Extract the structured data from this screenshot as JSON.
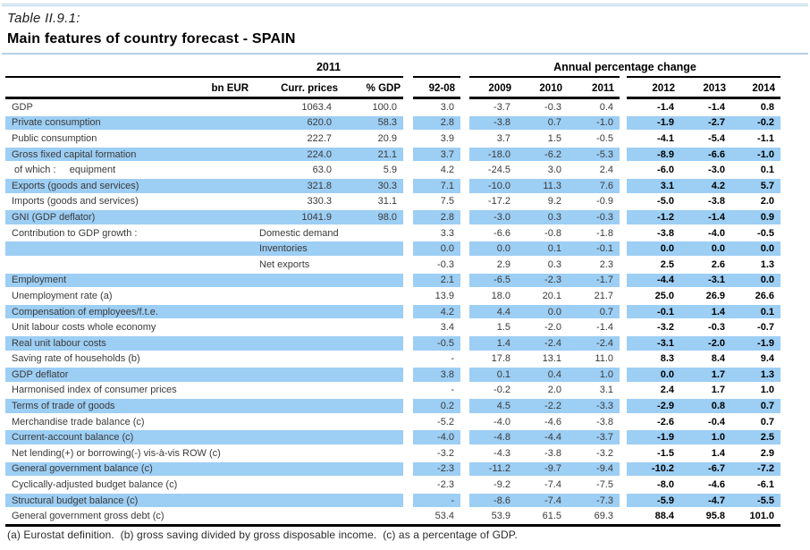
{
  "document": {
    "table_number": "Table II.9.1:",
    "title": "Main features of country forecast - SPAIN",
    "footnote": "(a) Eurostat definition.  (b) gross saving divided by gross disposable income.  (c) as a percentage of GDP."
  },
  "table": {
    "group_headers": {
      "levels": "2011",
      "changes": "Annual percentage change"
    },
    "column_headers": {
      "bn_eur": "bn EUR",
      "curr_prices": "Curr. prices",
      "pct_gdp": "% GDP",
      "period": "92-08",
      "years": [
        "2009",
        "2010",
        "2011",
        "2012",
        "2013",
        "2014"
      ]
    },
    "rows": [
      {
        "label": "GDP",
        "sub": "",
        "curr": "1063.4",
        "pct": "100.0",
        "values": [
          "3.0",
          "-3.7",
          "-0.3",
          "0.4",
          "-1.4",
          "-1.4",
          "0.8"
        ],
        "highlight": false
      },
      {
        "label": "Private consumption",
        "sub": "",
        "curr": "620.0",
        "pct": "58.3",
        "values": [
          "2.8",
          "-3.8",
          "0.7",
          "-1.0",
          "-1.9",
          "-2.7",
          "-0.2"
        ],
        "highlight": true
      },
      {
        "label": "Public consumption",
        "sub": "",
        "curr": "222.7",
        "pct": "20.9",
        "values": [
          "3.9",
          "3.7",
          "1.5",
          "-0.5",
          "-4.1",
          "-5.4",
          "-1.1"
        ],
        "highlight": false
      },
      {
        "label": "Gross fixed capital formation",
        "sub": "",
        "curr": "224.0",
        "pct": "21.1",
        "values": [
          "3.7",
          "-18.0",
          "-6.2",
          "-5.3",
          "-8.9",
          "-6.6",
          "-1.0"
        ],
        "highlight": true
      },
      {
        "label": " of which :     equipment",
        "sub": "",
        "curr": "63.0",
        "pct": "5.9",
        "values": [
          "4.2",
          "-24.5",
          "3.0",
          "2.4",
          "-6.0",
          "-3.0",
          "0.1"
        ],
        "highlight": false
      },
      {
        "label": "Exports (goods and services)",
        "sub": "",
        "curr": "321.8",
        "pct": "30.3",
        "values": [
          "7.1",
          "-10.0",
          "11.3",
          "7.6",
          "3.1",
          "4.2",
          "5.7"
        ],
        "highlight": true
      },
      {
        "label": "Imports (goods and services)",
        "sub": "",
        "curr": "330.3",
        "pct": "31.1",
        "values": [
          "7.5",
          "-17.2",
          "9.2",
          "-0.9",
          "-5.0",
          "-3.8",
          "2.0"
        ],
        "highlight": false
      },
      {
        "label": "GNI (GDP deflator)",
        "sub": "",
        "curr": "1041.9",
        "pct": "98.0",
        "values": [
          "2.8",
          "-3.0",
          "0.3",
          "-0.3",
          "-1.2",
          "-1.4",
          "0.9"
        ],
        "highlight": true
      },
      {
        "label": "Contribution to GDP growth :",
        "sub": "Domestic demand",
        "curr": "",
        "pct": "",
        "values": [
          "3.3",
          "-6.6",
          "-0.8",
          "-1.8",
          "-3.8",
          "-4.0",
          "-0.5"
        ],
        "highlight": false
      },
      {
        "label": "",
        "sub": "Inventories",
        "curr": "",
        "pct": "",
        "values": [
          "0.0",
          "0.0",
          "0.1",
          "-0.1",
          "0.0",
          "0.0",
          "0.0"
        ],
        "highlight": true
      },
      {
        "label": "",
        "sub": "Net exports",
        "curr": "",
        "pct": "",
        "values": [
          "-0.3",
          "2.9",
          "0.3",
          "2.3",
          "2.5",
          "2.6",
          "1.3"
        ],
        "highlight": false
      },
      {
        "label": "Employment",
        "sub": "",
        "curr": "",
        "pct": "",
        "values": [
          "2.1",
          "-6.5",
          "-2.3",
          "-1.7",
          "-4.4",
          "-3.1",
          "0.0"
        ],
        "highlight": true
      },
      {
        "label": "Unemployment rate (a)",
        "sub": "",
        "curr": "",
        "pct": "",
        "values": [
          "13.9",
          "18.0",
          "20.1",
          "21.7",
          "25.0",
          "26.9",
          "26.6"
        ],
        "highlight": false
      },
      {
        "label": "Compensation of employees/f.t.e.",
        "sub": "",
        "curr": "",
        "pct": "",
        "values": [
          "4.2",
          "4.4",
          "0.0",
          "0.7",
          "-0.1",
          "1.4",
          "0.1"
        ],
        "highlight": true
      },
      {
        "label": "Unit labour costs whole economy",
        "sub": "",
        "curr": "",
        "pct": "",
        "values": [
          "3.4",
          "1.5",
          "-2.0",
          "-1.4",
          "-3.2",
          "-0.3",
          "-0.7"
        ],
        "highlight": false
      },
      {
        "label": "Real unit labour costs",
        "sub": "",
        "curr": "",
        "pct": "",
        "values": [
          "-0.5",
          "1.4",
          "-2.4",
          "-2.4",
          "-3.1",
          "-2.0",
          "-1.9"
        ],
        "highlight": true
      },
      {
        "label": "Saving rate of households (b)",
        "sub": "",
        "curr": "",
        "pct": "",
        "values": [
          "-",
          "17.8",
          "13.1",
          "11.0",
          "8.3",
          "8.4",
          "9.4"
        ],
        "highlight": false
      },
      {
        "label": "GDP deflator",
        "sub": "",
        "curr": "",
        "pct": "",
        "values": [
          "3.8",
          "0.1",
          "0.4",
          "1.0",
          "0.0",
          "1.7",
          "1.3"
        ],
        "highlight": true
      },
      {
        "label": "Harmonised index of consumer prices",
        "sub": "",
        "curr": "",
        "pct": "",
        "values": [
          "-",
          "-0.2",
          "2.0",
          "3.1",
          "2.4",
          "1.7",
          "1.0"
        ],
        "highlight": false
      },
      {
        "label": "Terms of trade of goods",
        "sub": "",
        "curr": "",
        "pct": "",
        "values": [
          "0.2",
          "4.5",
          "-2.2",
          "-3.3",
          "-2.9",
          "0.8",
          "0.7"
        ],
        "highlight": true
      },
      {
        "label": "Merchandise trade balance (c)",
        "sub": "",
        "curr": "",
        "pct": "",
        "values": [
          "-5.2",
          "-4.0",
          "-4.6",
          "-3.8",
          "-2.6",
          "-0.4",
          "0.7"
        ],
        "highlight": false
      },
      {
        "label": "Current-account balance (c)",
        "sub": "",
        "curr": "",
        "pct": "",
        "values": [
          "-4.0",
          "-4.8",
          "-4.4",
          "-3.7",
          "-1.9",
          "1.0",
          "2.5"
        ],
        "highlight": true
      },
      {
        "label": "Net lending(+) or borrowing(-) vis-à-vis ROW (c)",
        "sub": "",
        "curr": "",
        "pct": "",
        "values": [
          "-3.2",
          "-4.3",
          "-3.8",
          "-3.2",
          "-1.5",
          "1.4",
          "2.9"
        ],
        "highlight": false
      },
      {
        "label": "General government balance (c)",
        "sub": "",
        "curr": "",
        "pct": "",
        "values": [
          "-2.3",
          "-11.2",
          "-9.7",
          "-9.4",
          "-10.2",
          "-6.7",
          "-7.2"
        ],
        "highlight": true
      },
      {
        "label": "Cyclically-adjusted budget balance (c)",
        "sub": "",
        "curr": "",
        "pct": "",
        "values": [
          "-2.3",
          "-9.2",
          "-7.4",
          "-7.5",
          "-8.0",
          "-4.6",
          "-6.1"
        ],
        "highlight": false
      },
      {
        "label": "Structural budget balance (c)",
        "sub": "",
        "curr": "",
        "pct": "",
        "values": [
          "-",
          "-8.6",
          "-7.4",
          "-7.3",
          "-5.9",
          "-4.7",
          "-5.5"
        ],
        "highlight": true
      },
      {
        "label": "General government gross debt (c)",
        "sub": "",
        "curr": "",
        "pct": "",
        "values": [
          "53.4",
          "53.9",
          "61.5",
          "69.3",
          "88.4",
          "95.8",
          "101.0"
        ],
        "highlight": false
      }
    ]
  },
  "colors": {
    "row_highlight": "#9DCEF4",
    "rule_blue": "#B3D1E6",
    "text_regular": "#3a3a3a",
    "text_bold": "#000000"
  }
}
